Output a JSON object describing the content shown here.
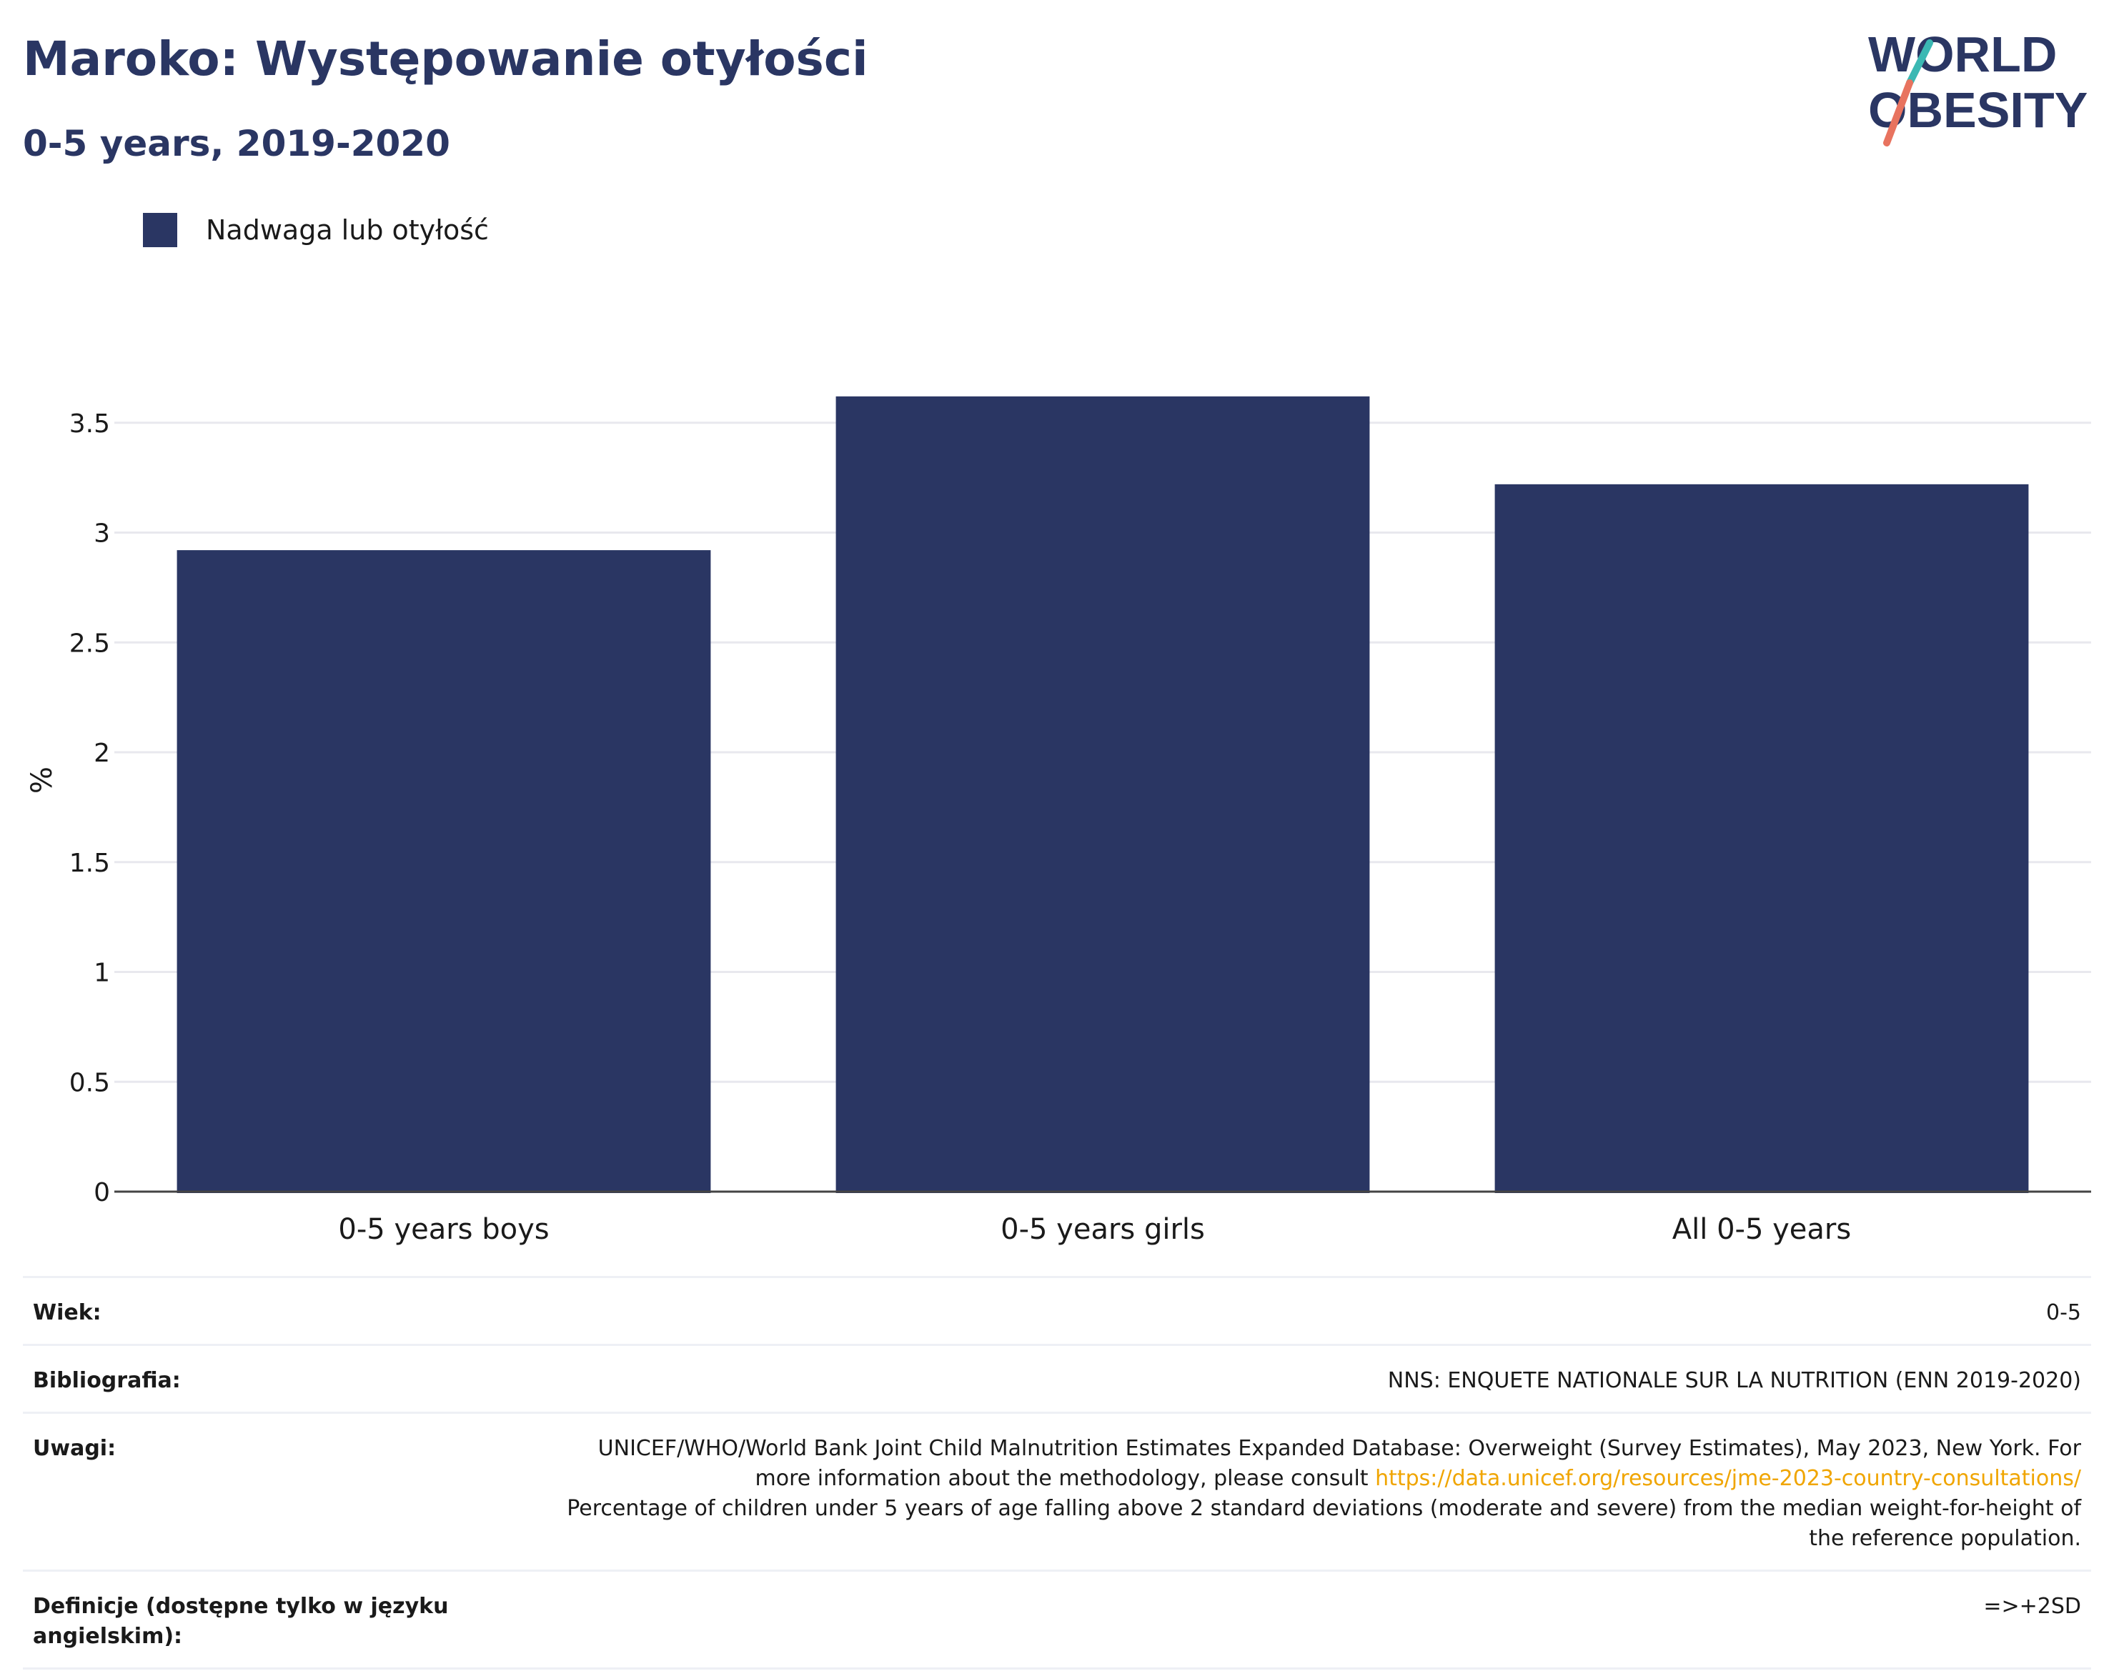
{
  "header": {
    "title": "Maroko: Występowanie otyłości",
    "subtitle": "0-5 years, 2019-2020"
  },
  "logo": {
    "line1": "WORLD",
    "line2": "OBESITY"
  },
  "legend": {
    "label": "Nadwaga lub otyłość",
    "color": "#2a3663"
  },
  "chart_data": {
    "type": "bar",
    "categories": [
      "0-5 years boys",
      "0-5 years girls",
      "All 0-5 years"
    ],
    "series": [
      {
        "name": "Nadwaga lub otyłość",
        "values": [
          2.92,
          3.62,
          3.22
        ]
      }
    ],
    "title": "Maroko: Występowanie otyłości",
    "subtitle": "0-5 years, 2019-2020",
    "xlabel": "",
    "ylabel": "%",
    "ylim": [
      0,
      3.5
    ],
    "yticks": [
      "0",
      "0.5",
      "1",
      "1.5",
      "2",
      "2.5",
      "3",
      "3.5"
    ],
    "grid": true,
    "legend_position": "top-left",
    "bar_color": "#2a3663"
  },
  "info": {
    "age_label": "Wiek:",
    "age_value": "0-5",
    "bibliography_label": "Bibliografia:",
    "bibliography_value": "NNS: ENQUETE NATIONALE SUR LA NUTRITION (ENN 2019-2020)",
    "notes_label": "Uwagi:",
    "notes_text_1": "UNICEF/WHO/World Bank Joint Child Malnutrition Estimates Expanded Database: Overweight (Survey Estimates), May 2023, New York. For more information about the methodology, please consult ",
    "notes_link": "https://data.unicef.org/resources/jme-2023-country-consultations/",
    "notes_text_2": "Percentage of children under 5 years of age falling above 2 standard deviations (moderate and severe) from the median weight-for-height of the reference population.",
    "definitions_label": "Definicje (dostępne tylko w języku angielskim):",
    "definitions_value": "=>+2SD"
  }
}
